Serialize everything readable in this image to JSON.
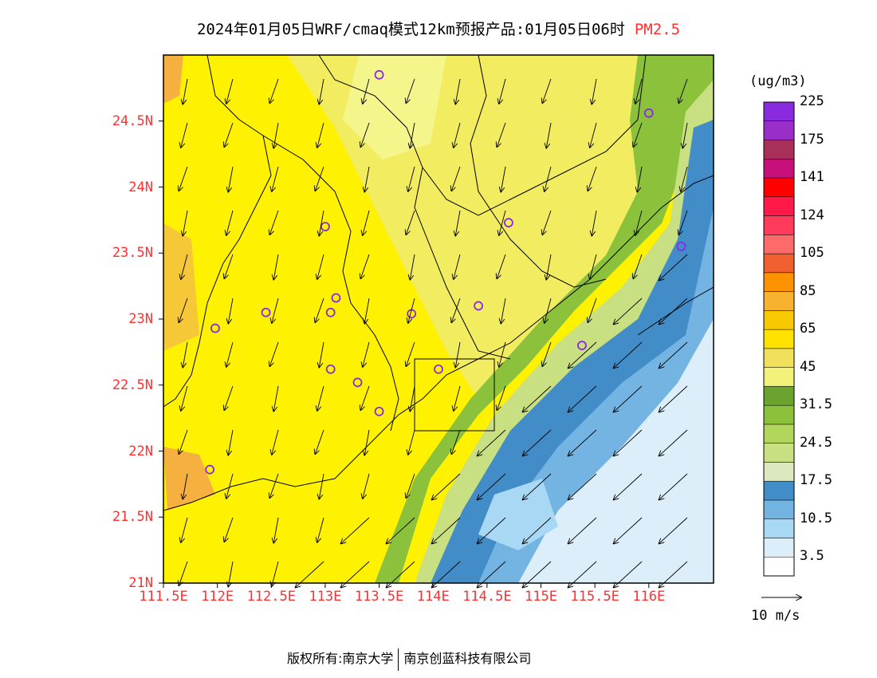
{
  "header": {
    "title": "2024年01月05日WRF/cmaq模式12km预报产品:01月05日06时",
    "pollutant": "PM2.5"
  },
  "axes": {
    "y_ticks": [
      "24.5N",
      "24N",
      "23.5N",
      "23N",
      "22.5N",
      "22N",
      "21.5N",
      "21N"
    ],
    "y_values": [
      24.5,
      24,
      23.5,
      23,
      22.5,
      22,
      21.5,
      21
    ],
    "x_ticks": [
      "111.5E",
      "112E",
      "112.5E",
      "113E",
      "113.5E",
      "114E",
      "114.5E",
      "115E",
      "115.5E",
      "116E"
    ],
    "x_values": [
      111.5,
      112,
      112.5,
      113,
      113.5,
      114,
      114.5,
      115,
      115.5,
      116
    ],
    "lon_range": [
      111.5,
      116.6
    ],
    "lat_range": [
      21,
      25
    ]
  },
  "colorbar": {
    "unit": "(ug/m3)",
    "colors": [
      "#ffffff",
      "#dceefa",
      "#a8d8f4",
      "#74b4e2",
      "#428cc8",
      "#dce9c0",
      "#c8e082",
      "#b0d65c",
      "#8cc13c",
      "#6aa42e",
      "#f2f27a",
      "#f0e05c",
      "#ffe200",
      "#f8c800",
      "#f8b230",
      "#ff9200",
      "#f06030",
      "#ff6a6a",
      "#ff3a5a",
      "#ff1a4a",
      "#ff0000",
      "#c8107a",
      "#a8305a",
      "#9a2ec8",
      "#8a2ae0"
    ],
    "labels": [
      "3.5",
      "10.5",
      "17.5",
      "24.5",
      "31.5",
      "45",
      "65",
      "85",
      "105",
      "124",
      "141",
      "175",
      "225"
    ]
  },
  "wind": {
    "scale_label": "10 m/s"
  },
  "stations": [
    {
      "lon": 113.5,
      "lat": 24.85
    },
    {
      "lon": 116.0,
      "lat": 24.56
    },
    {
      "lon": 113.0,
      "lat": 23.7
    },
    {
      "lon": 114.7,
      "lat": 23.73
    },
    {
      "lon": 116.3,
      "lat": 23.55
    },
    {
      "lon": 113.1,
      "lat": 23.16
    },
    {
      "lon": 112.45,
      "lat": 23.05
    },
    {
      "lon": 113.05,
      "lat": 23.05
    },
    {
      "lon": 113.8,
      "lat": 23.04
    },
    {
      "lon": 114.42,
      "lat": 23.1
    },
    {
      "lon": 111.98,
      "lat": 22.93
    },
    {
      "lon": 115.38,
      "lat": 22.8
    },
    {
      "lon": 113.05,
      "lat": 22.62
    },
    {
      "lon": 113.3,
      "lat": 22.52
    },
    {
      "lon": 114.05,
      "lat": 22.62
    },
    {
      "lon": 113.5,
      "lat": 22.3
    },
    {
      "lon": 111.93,
      "lat": 21.86
    }
  ],
  "footer": {
    "copyright_left": "版权所有:南京大学",
    "copyright_right": "南京创蓝科技有限公司"
  }
}
